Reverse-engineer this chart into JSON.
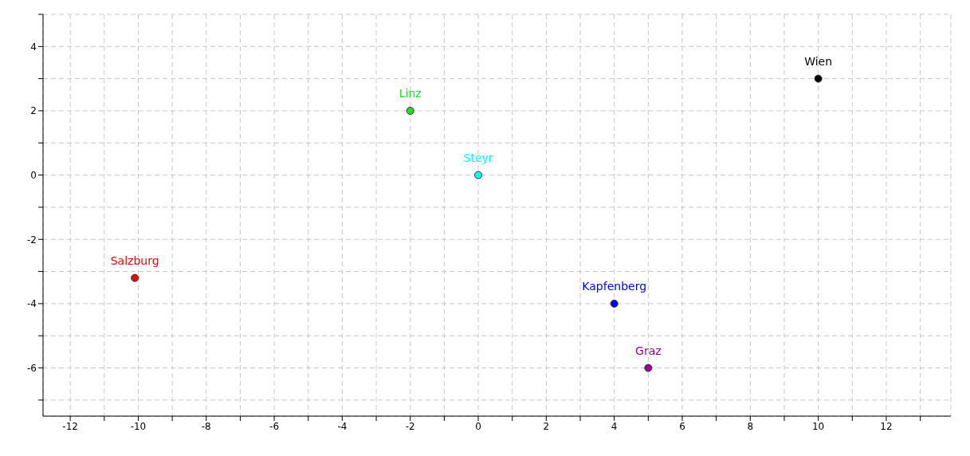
{
  "chart_data": {
    "type": "scatter",
    "marker": "circle",
    "grid": true,
    "legend": false,
    "xlim": [
      -12.8,
      13.9
    ],
    "xticks": [
      -12,
      {
        "value": -11,
        "label": null
      },
      -10,
      {
        "value": -9,
        "label": null
      },
      -8,
      {
        "value": -7,
        "label": null
      },
      -6,
      {
        "value": -5,
        "label": null
      },
      -4,
      {
        "value": -3,
        "label": null
      },
      -2,
      {
        "value": -1,
        "label": null
      },
      0,
      {
        "value": 1,
        "label": null
      },
      2,
      {
        "value": 3,
        "label": null
      },
      4,
      {
        "value": 5,
        "label": null
      },
      6,
      {
        "value": 7,
        "label": null
      },
      8,
      {
        "value": 9,
        "label": null
      },
      10,
      {
        "value": 11,
        "label": null
      },
      12,
      {
        "value": 13,
        "label": null
      }
    ],
    "ylim": [
      -7.5,
      5
    ],
    "yticks": [
      {
        "value": -7,
        "label": null
      },
      -6,
      {
        "value": -5,
        "label": null
      },
      -4,
      {
        "value": -3,
        "label": null
      },
      -2,
      {
        "value": -1,
        "label": null
      },
      0,
      {
        "value": 1,
        "label": null
      },
      2,
      {
        "value": 3,
        "label": null
      },
      4,
      {
        "value": 5,
        "label": null
      }
    ],
    "series": [
      {
        "name": "Wien",
        "color": "#000000",
        "x": [
          10
        ],
        "values": [
          3
        ]
      },
      {
        "name": "Linz",
        "color": "#22dd22",
        "x": [
          -2
        ],
        "values": [
          2
        ]
      },
      {
        "name": "Steyr",
        "color": "#00ffff",
        "x": [
          0
        ],
        "values": [
          0
        ]
      },
      {
        "name": "Salzburg",
        "color": "#ff0000",
        "x": [
          -10.1
        ],
        "values": [
          -3.2
        ]
      },
      {
        "name": "Kapfenberg",
        "color": "#0000ff",
        "x": [
          4
        ],
        "values": [
          -4
        ]
      },
      {
        "name": "Graz",
        "color": "#990099",
        "x": [
          5
        ],
        "values": [
          -6
        ]
      }
    ]
  }
}
